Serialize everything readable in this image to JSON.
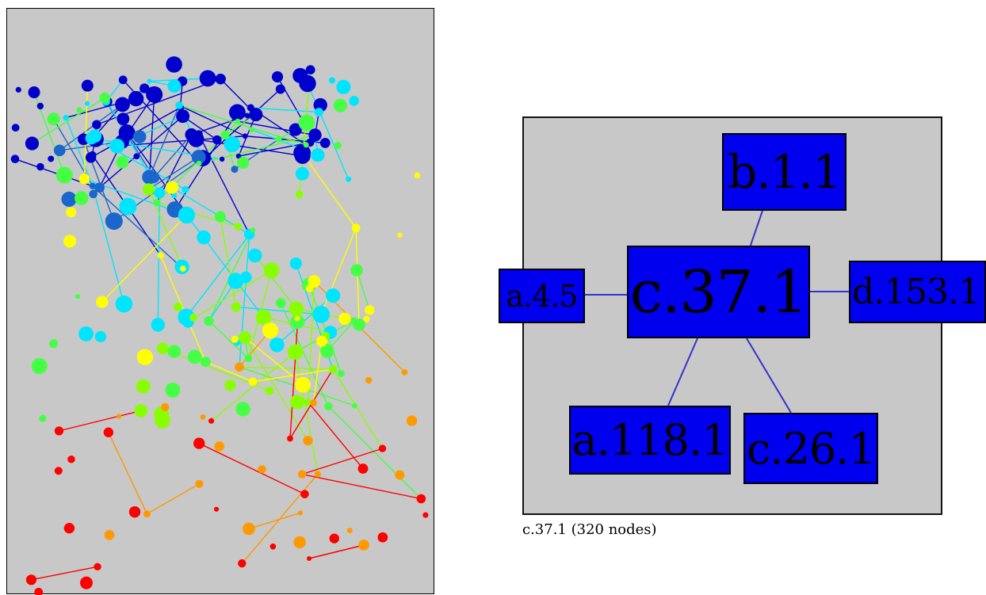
{
  "overview": {
    "colors": [
      "#0000cc",
      "#1a66cc",
      "#00e5ff",
      "#44ff44",
      "#88ff00",
      "#ffff00",
      "#ff9900",
      "#ff0000"
    ]
  },
  "detail": {
    "node_color": "#0000ee",
    "edge_color": "#3333cc",
    "nodes": [
      {
        "id": "center",
        "label": "c.37.1"
      },
      {
        "id": "top",
        "label": "b.1.1"
      },
      {
        "id": "left",
        "label": "a.4.5"
      },
      {
        "id": "right",
        "label": "d.153.1"
      },
      {
        "id": "bottom-left",
        "label": "a.118.1"
      },
      {
        "id": "bottom-right",
        "label": "c.26.1"
      }
    ],
    "edges": [
      [
        "center",
        "top"
      ],
      [
        "center",
        "left"
      ],
      [
        "center",
        "right"
      ],
      [
        "center",
        "bottom-left"
      ],
      [
        "center",
        "bottom-right"
      ]
    ]
  },
  "caption": "c.37.1 (320 nodes)"
}
